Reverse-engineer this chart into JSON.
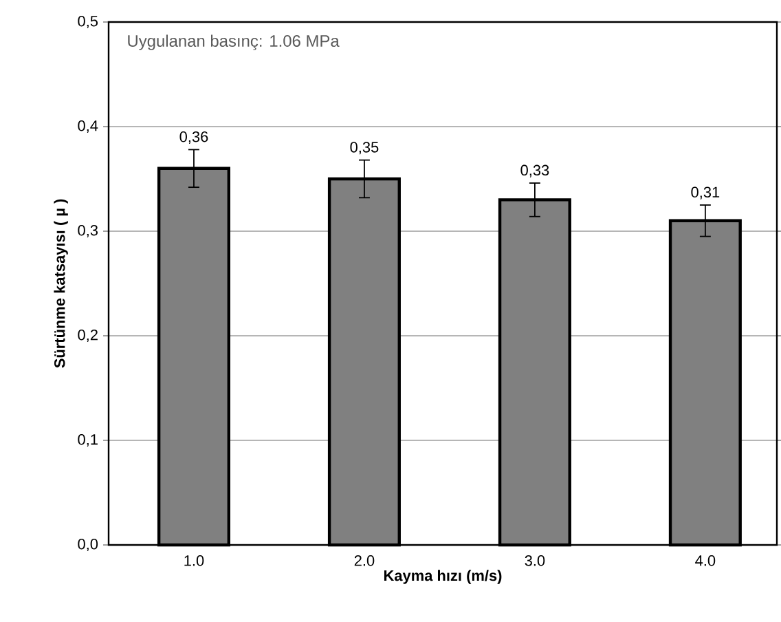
{
  "chart_data": {
    "type": "bar",
    "xlabel": "Kayma hızı (m/s)",
    "ylabel": "Sürtünme katsayısı  ( µ )",
    "categories": [
      "1.0",
      "2.0",
      "3.0",
      "4.0"
    ],
    "values": [
      0.36,
      0.35,
      0.33,
      0.31
    ],
    "errors": [
      0.018,
      0.018,
      0.016,
      0.015
    ],
    "value_labels": [
      "0,36",
      "0,35",
      "0,33",
      "0,31"
    ],
    "color": "#808080",
    "ylim": [
      0,
      0.5
    ],
    "yticks": [
      {
        "value": 0,
        "label": "0,0"
      },
      {
        "value": 0.1,
        "label": "0,1"
      },
      {
        "value": 0.2,
        "label": "0,2"
      },
      {
        "value": 0.3,
        "label": "0,3"
      },
      {
        "value": 0.4,
        "label": "0,4"
      },
      {
        "value": 0.5,
        "label": "0,5"
      }
    ],
    "grid": "y",
    "annotations": [
      "Uygulanan basınç: 1.06 MPa"
    ]
  }
}
